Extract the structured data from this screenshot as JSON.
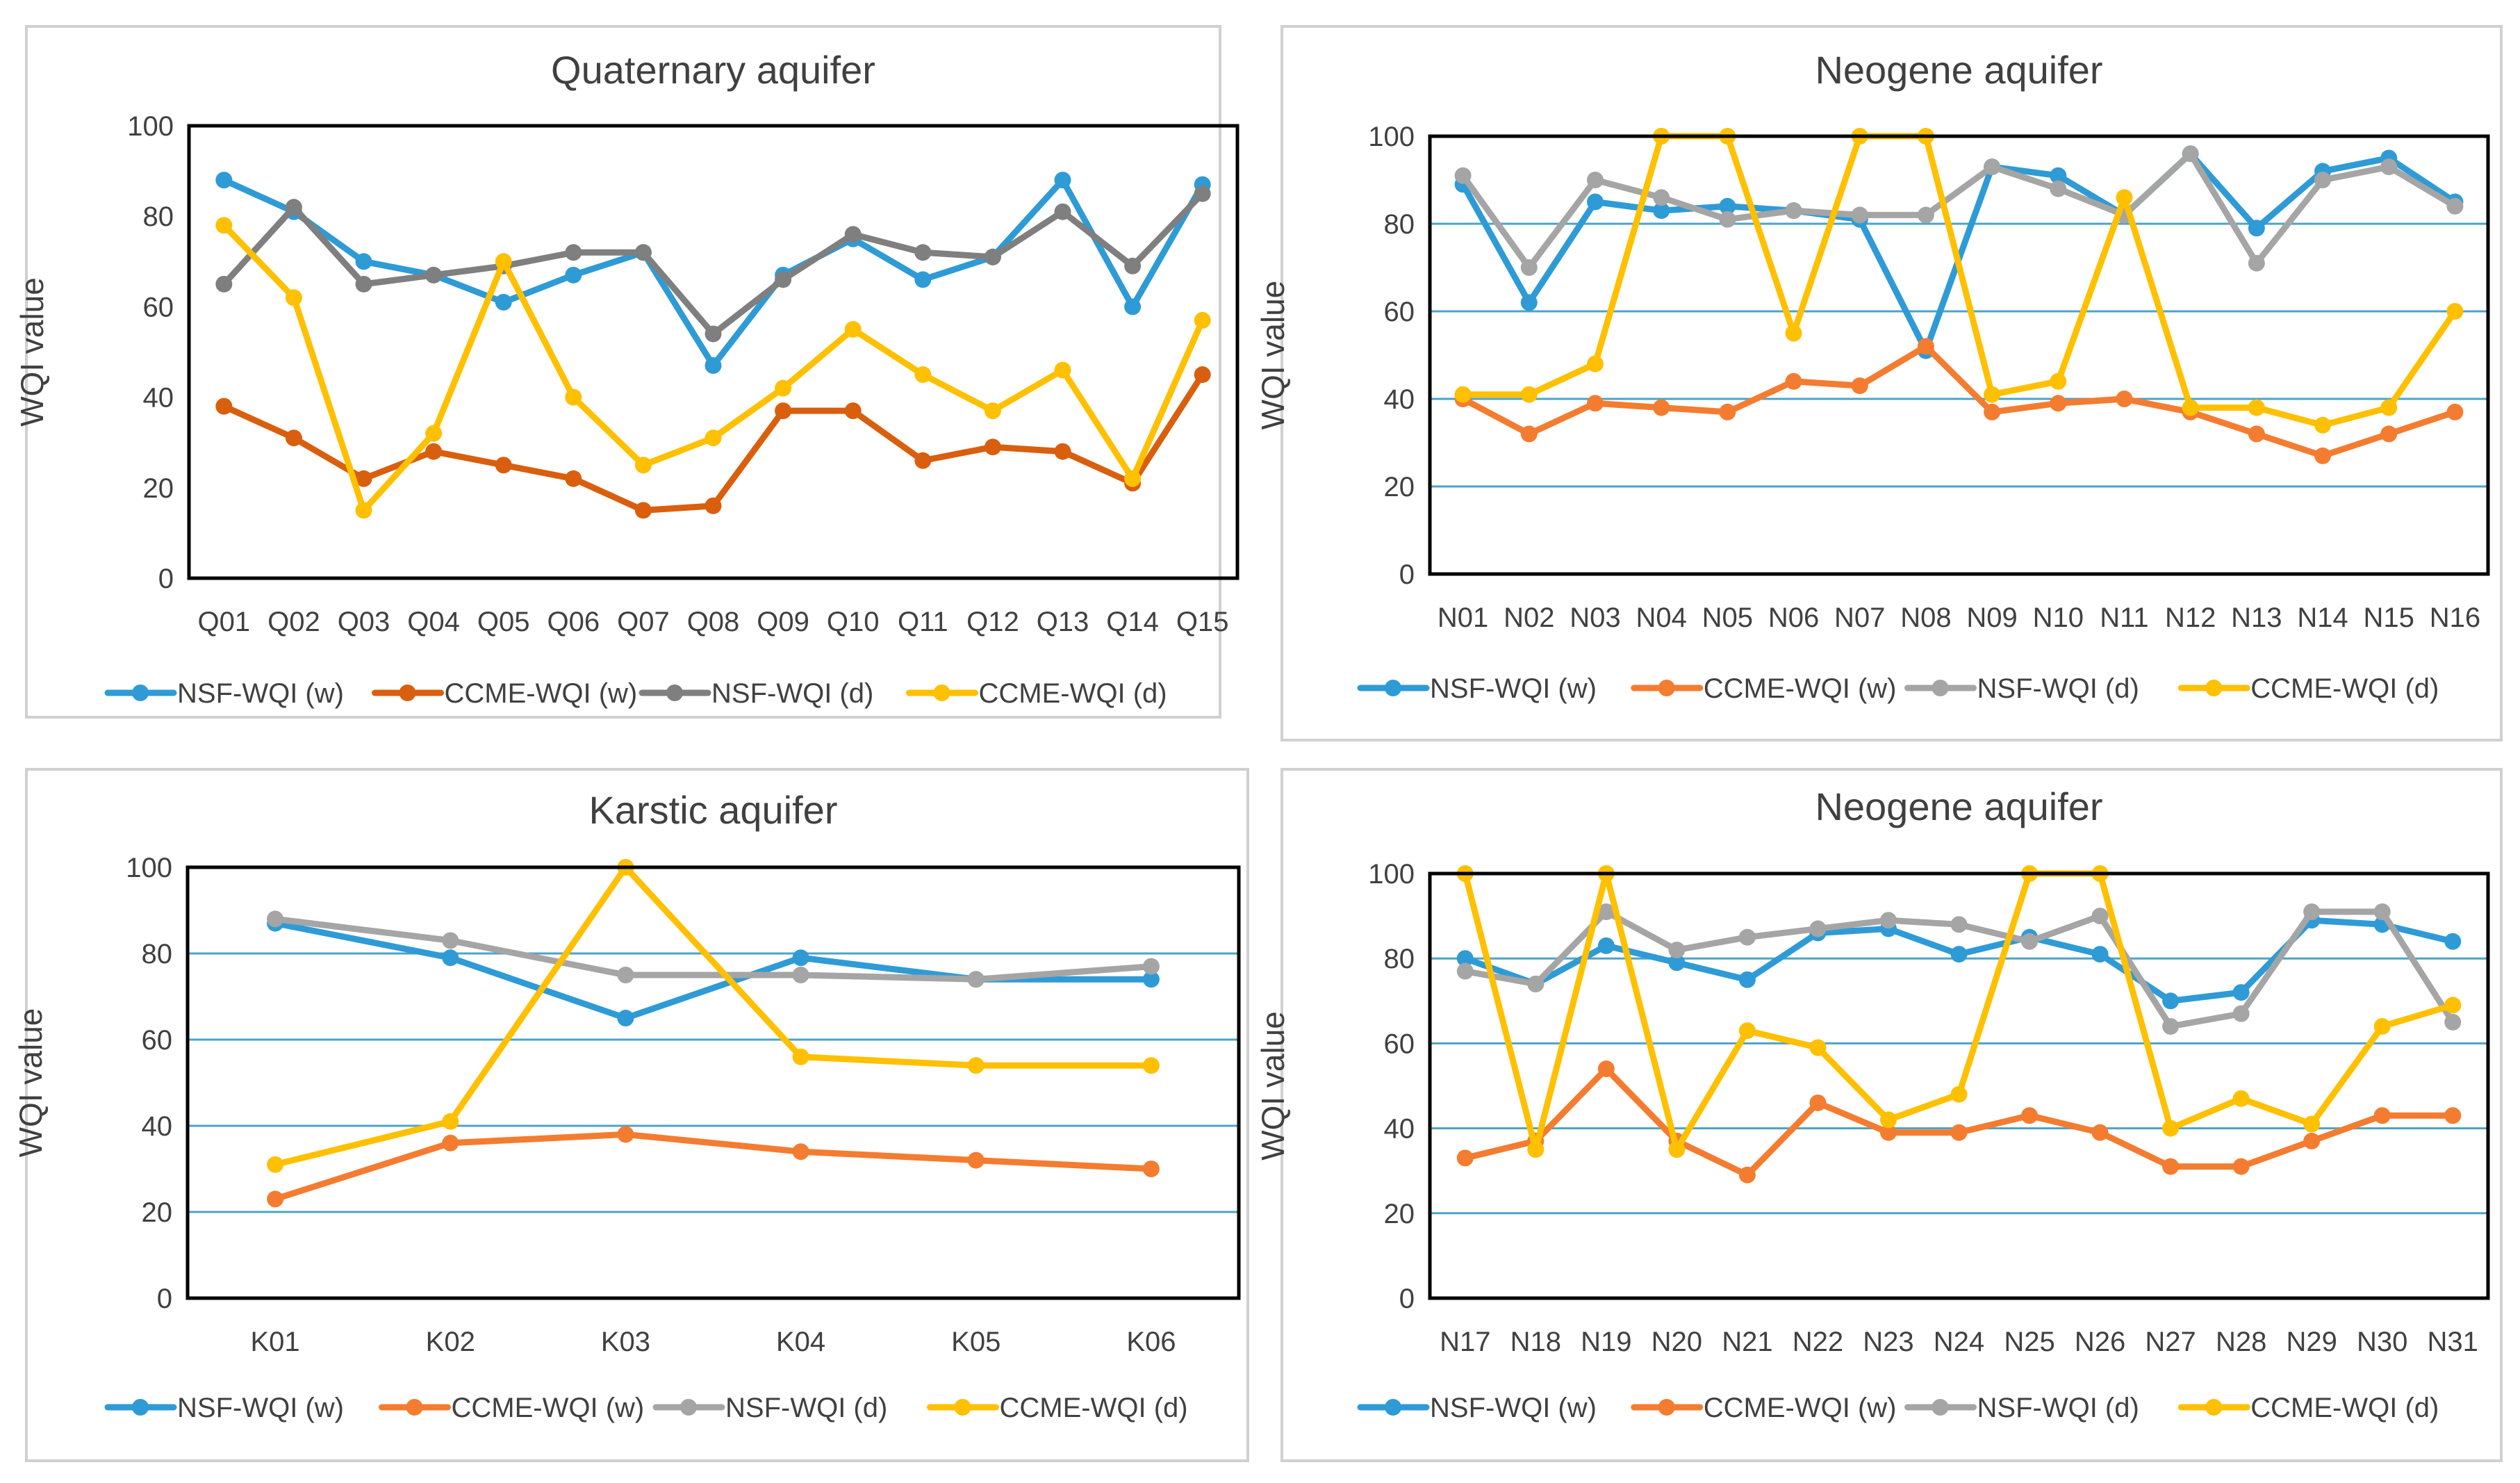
{
  "chart_data": [
    {
      "type": "line",
      "title": "Quaternary aquifer",
      "xlabel": "",
      "ylabel": "WQI value",
      "ylim": [
        0,
        100
      ],
      "yticks": [
        0,
        20,
        40,
        60,
        80,
        100
      ],
      "grid": "none",
      "legend": "bottom",
      "categories": [
        "Q01",
        "Q02",
        "Q03",
        "Q04",
        "Q05",
        "Q06",
        "Q07",
        "Q08",
        "Q09",
        "Q10",
        "Q11",
        "Q12",
        "Q13",
        "Q14",
        "Q15"
      ],
      "series": [
        {
          "name": "NSF-WQI (w)",
          "color": "#2e9bd6",
          "values": [
            88,
            81,
            70,
            67,
            61,
            67,
            72,
            47,
            67,
            75,
            66,
            71,
            88,
            60,
            87
          ]
        },
        {
          "name": "CCME-WQI (w)",
          "color": "#d95f0e",
          "values": [
            38,
            31,
            22,
            28,
            25,
            22,
            15,
            16,
            37,
            37,
            26,
            29,
            28,
            21,
            45
          ]
        },
        {
          "name": "NSF-WQI (d)",
          "color": "#7f7f7f",
          "values": [
            65,
            82,
            65,
            67,
            69,
            72,
            72,
            54,
            66,
            76,
            72,
            71,
            81,
            69,
            85
          ]
        },
        {
          "name": "CCME-WQI (d)",
          "color": "#ffc000",
          "values": [
            78,
            62,
            15,
            32,
            70,
            40,
            25,
            31,
            42,
            55,
            45,
            37,
            46,
            22,
            57
          ]
        }
      ]
    },
    {
      "type": "line",
      "title": "Neogene aquifer",
      "xlabel": "",
      "ylabel": "WQI value",
      "ylim": [
        0,
        100
      ],
      "yticks": [
        0,
        20,
        40,
        60,
        80,
        100
      ],
      "grid": "horizontal",
      "legend": "bottom",
      "categories": [
        "N01",
        "N02",
        "N03",
        "N04",
        "N05",
        "N06",
        "N07",
        "N08",
        "N09",
        "N10",
        "N11",
        "N12",
        "N13",
        "N14",
        "N15",
        "N16"
      ],
      "series": [
        {
          "name": "NSF-WQI (w)",
          "color": "#2e9bd6",
          "values": [
            89,
            62,
            85,
            83,
            84,
            83,
            81,
            51,
            93,
            91,
            82,
            96,
            79,
            92,
            95,
            85
          ]
        },
        {
          "name": "CCME-WQI (w)",
          "color": "#f47c30",
          "values": [
            40,
            32,
            39,
            38,
            37,
            44,
            43,
            52,
            37,
            39,
            40,
            37,
            32,
            27,
            32,
            37
          ]
        },
        {
          "name": "NSF-WQI (d)",
          "color": "#a5a5a5",
          "values": [
            91,
            70,
            90,
            86,
            81,
            83,
            82,
            82,
            93,
            88,
            82,
            96,
            71,
            90,
            93,
            84
          ]
        },
        {
          "name": "CCME-WQI (d)",
          "color": "#ffc000",
          "values": [
            41,
            41,
            48,
            100,
            100,
            55,
            100,
            100,
            41,
            44,
            86,
            38,
            38,
            34,
            38,
            60
          ]
        }
      ]
    },
    {
      "type": "line",
      "title": "Karstic aquifer",
      "xlabel": "",
      "ylabel": "WQI value",
      "ylim": [
        0,
        100
      ],
      "yticks": [
        0,
        20,
        40,
        60,
        80,
        100
      ],
      "grid": "horizontal",
      "legend": "bottom",
      "categories": [
        "K01",
        "K02",
        "K03",
        "K04",
        "K05",
        "K06"
      ],
      "series": [
        {
          "name": "NSF-WQI (w)",
          "color": "#2e9bd6",
          "values": [
            87,
            79,
            65,
            79,
            74,
            74
          ]
        },
        {
          "name": "CCME-WQI (w)",
          "color": "#f47c30",
          "values": [
            23,
            36,
            38,
            34,
            32,
            30
          ]
        },
        {
          "name": "NSF-WQI (d)",
          "color": "#a5a5a5",
          "values": [
            88,
            83,
            75,
            75,
            74,
            77
          ]
        },
        {
          "name": "CCME-WQI (d)",
          "color": "#ffc000",
          "values": [
            31,
            41,
            100,
            56,
            54,
            54
          ]
        }
      ]
    },
    {
      "type": "line",
      "title": "Neogene aquifer",
      "xlabel": "",
      "ylabel": "WQI value",
      "ylim": [
        0,
        100
      ],
      "yticks": [
        0,
        20,
        40,
        60,
        80,
        100
      ],
      "grid": "horizontal",
      "legend": "bottom",
      "categories": [
        "N17",
        "N18",
        "N19",
        "N20",
        "N21",
        "N22",
        "N23",
        "N24",
        "N25",
        "N26",
        "N27",
        "N28",
        "N29",
        "N30",
        "N31"
      ],
      "series": [
        {
          "name": "NSF-WQI (w)",
          "color": "#2e9bd6",
          "values": [
            80,
            74,
            83,
            79,
            75,
            86,
            87,
            81,
            85,
            81,
            70,
            72,
            89,
            88,
            84
          ]
        },
        {
          "name": "CCME-WQI (w)",
          "color": "#f47c30",
          "values": [
            33,
            37,
            54,
            37,
            29,
            46,
            39,
            39,
            43,
            39,
            31,
            31,
            37,
            43,
            43
          ]
        },
        {
          "name": "NSF-WQI (d)",
          "color": "#a5a5a5",
          "values": [
            77,
            74,
            91,
            82,
            85,
            87,
            89,
            88,
            84,
            90,
            64,
            67,
            91,
            91,
            65
          ]
        },
        {
          "name": "CCME-WQI (d)",
          "color": "#ffc000",
          "values": [
            100,
            35,
            100,
            35,
            63,
            59,
            42,
            48,
            100,
            100,
            40,
            47,
            41,
            64,
            69
          ]
        }
      ]
    }
  ]
}
